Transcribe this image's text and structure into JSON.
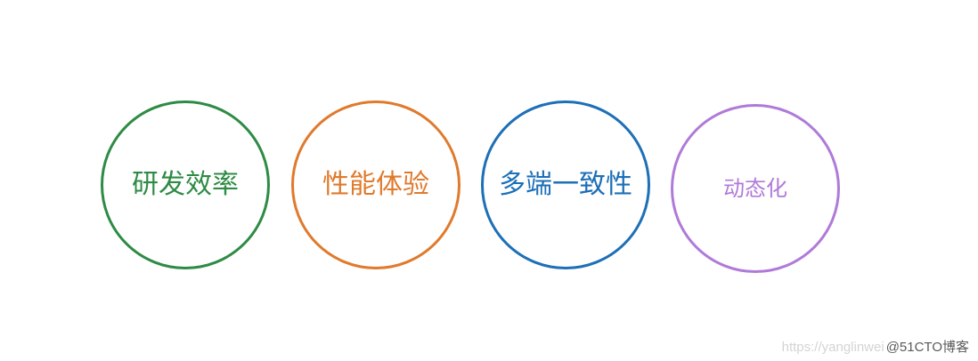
{
  "circles": [
    {
      "label": "研发效率",
      "color": "#2e8b44"
    },
    {
      "label": "性能体验",
      "color": "#e07a2c"
    },
    {
      "label": "多端一致性",
      "color": "#1d6fb7"
    },
    {
      "label": "动态化",
      "color": "#b07ad8"
    }
  ],
  "watermark": {
    "url_text": "https://yanglinwei",
    "site_text": "@51CTO博客"
  }
}
